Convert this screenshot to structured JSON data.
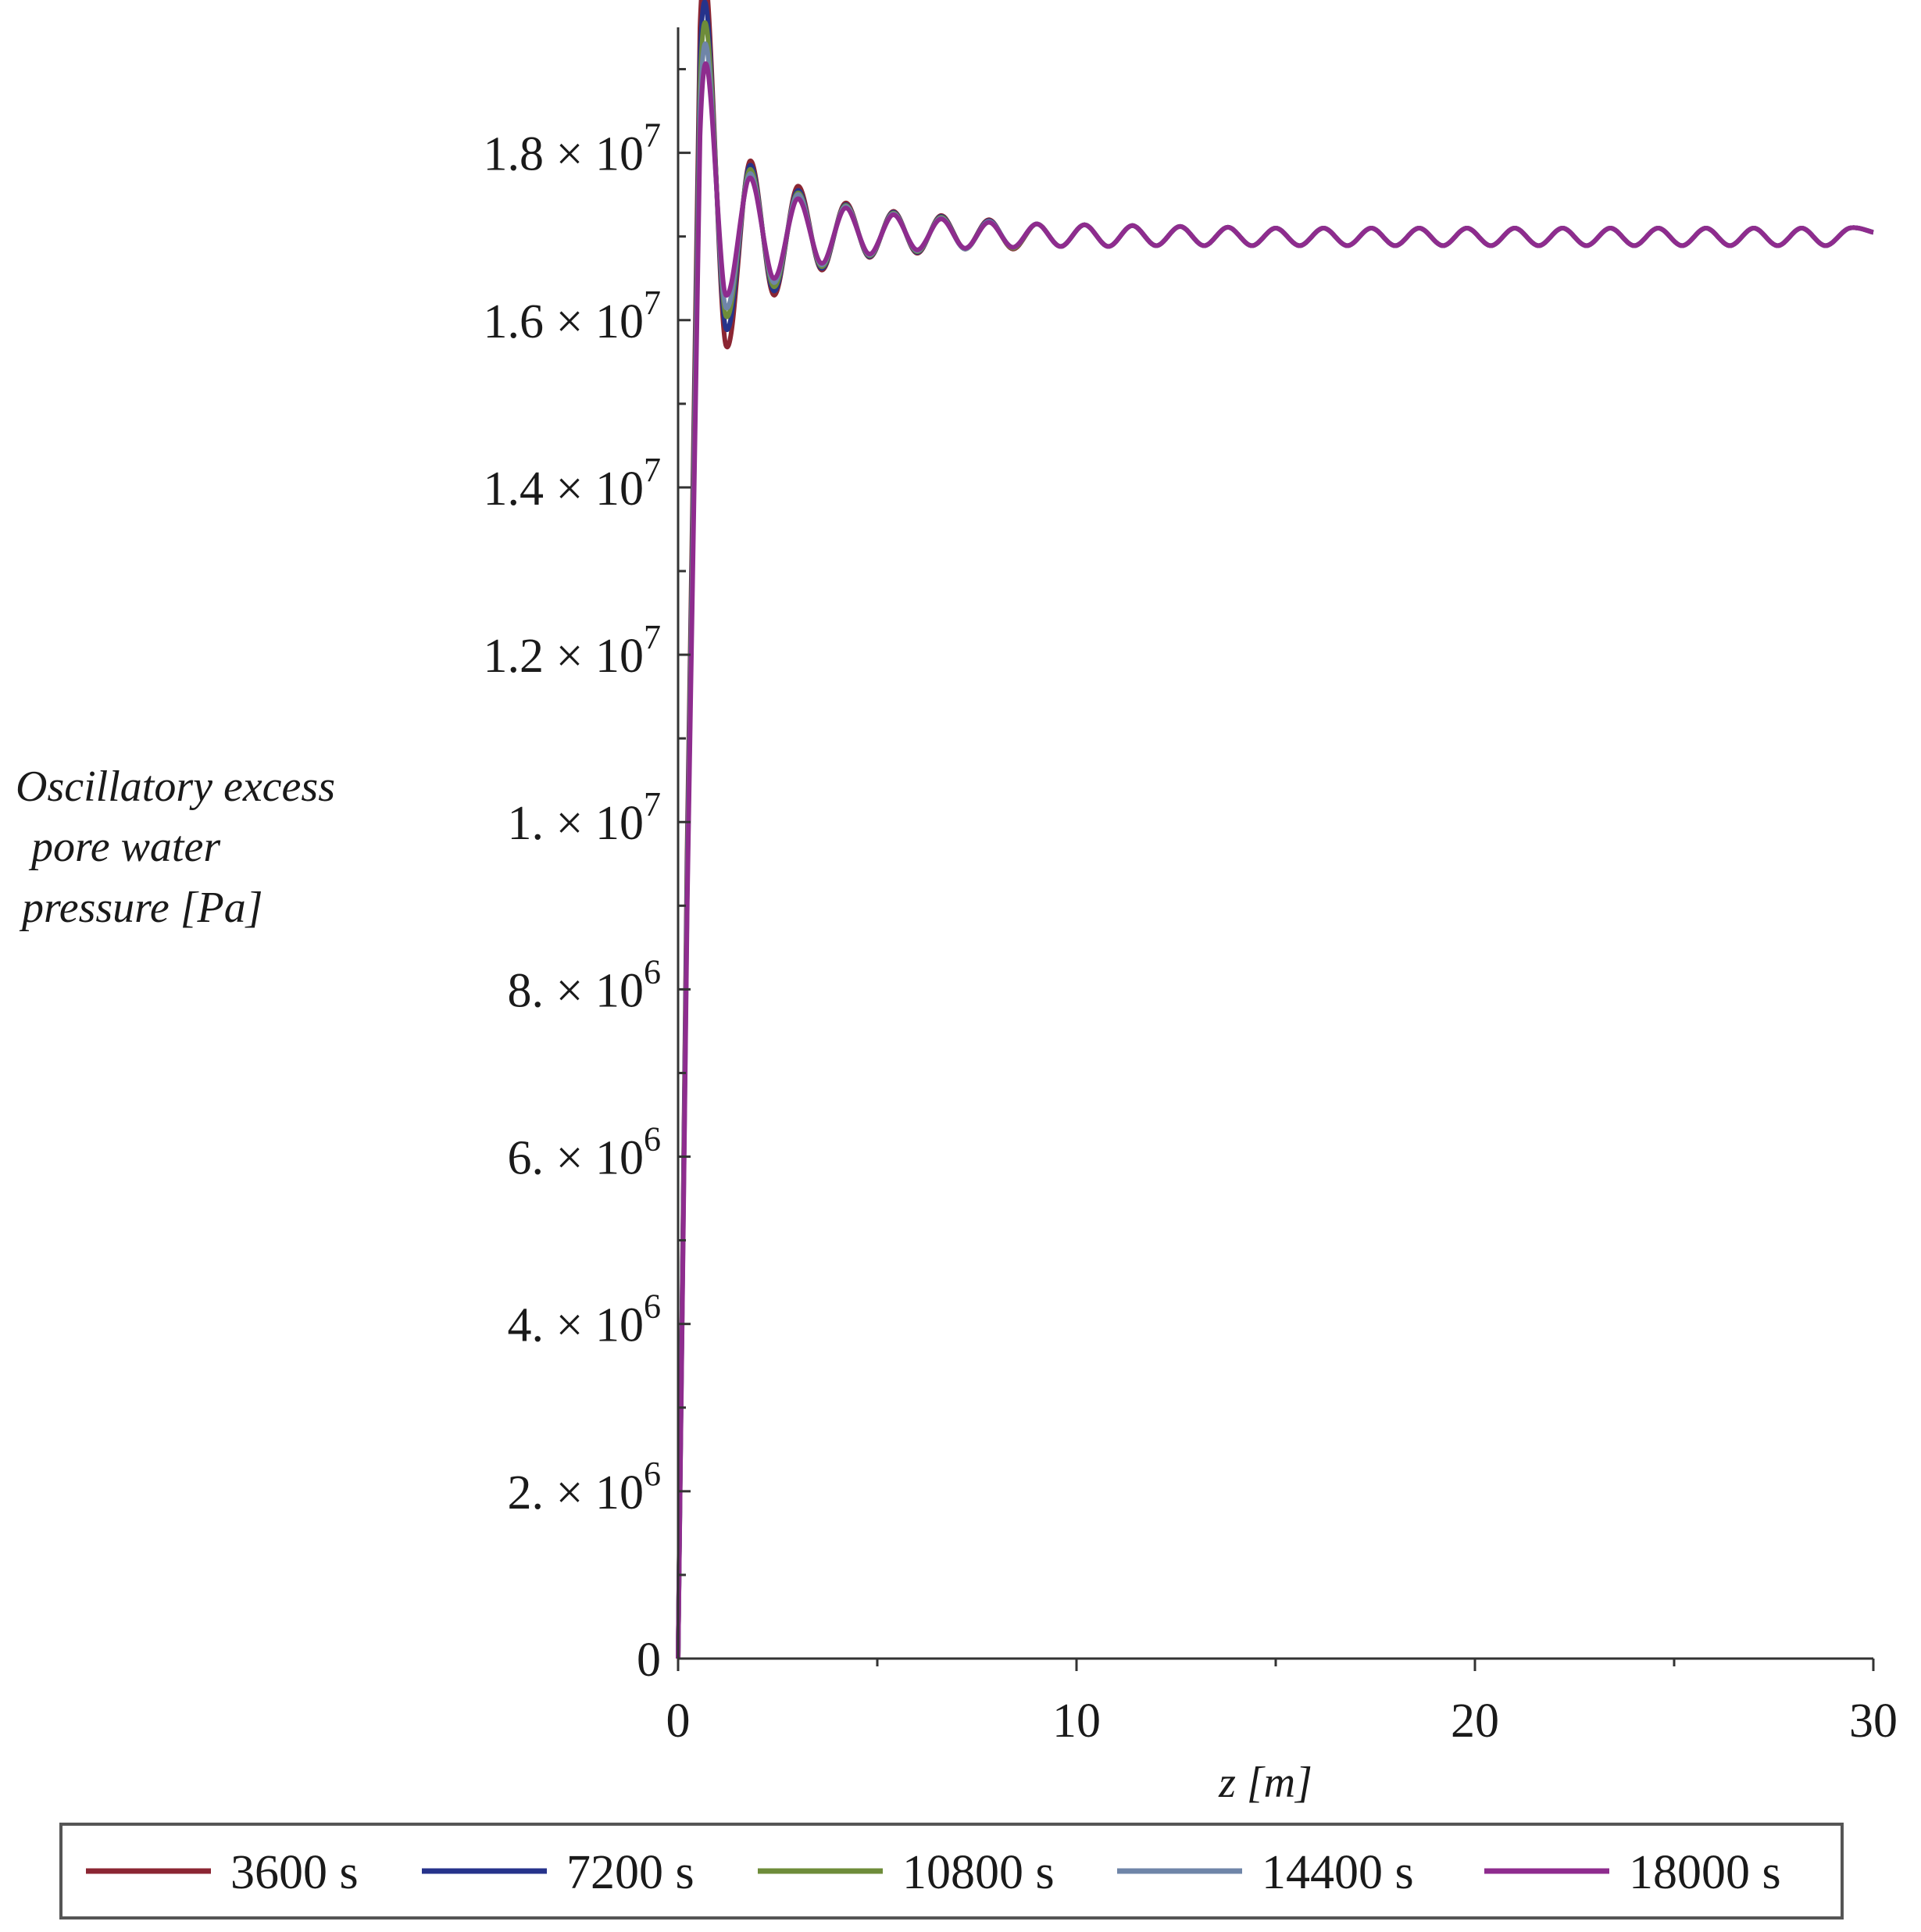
{
  "chart_data": {
    "type": "line",
    "title": "",
    "xlabel": "z [m]",
    "ylabel_lines": [
      "Oscillatory excess",
      "pore water",
      "pressure [Pa]"
    ],
    "xlim": [
      0,
      30
    ],
    "ylim": [
      0,
      19500000
    ],
    "x_ticks": [
      {
        "value": 0,
        "label": "0"
      },
      {
        "value": 10,
        "label": "10"
      },
      {
        "value": 20,
        "label": "20"
      },
      {
        "value": 30,
        "label": "30"
      }
    ],
    "y_ticks": [
      {
        "value": 0,
        "mantissa": "0",
        "exponent": ""
      },
      {
        "value": 2000000,
        "mantissa": "2. × 10",
        "exponent": "6"
      },
      {
        "value": 4000000,
        "mantissa": "4. × 10",
        "exponent": "6"
      },
      {
        "value": 6000000,
        "mantissa": "6. × 10",
        "exponent": "6"
      },
      {
        "value": 8000000,
        "mantissa": "8. × 10",
        "exponent": "6"
      },
      {
        "value": 10000000,
        "mantissa": "1. × 10",
        "exponent": "7"
      },
      {
        "value": 12000000,
        "mantissa": "1.2 × 10",
        "exponent": "7"
      },
      {
        "value": 14000000,
        "mantissa": "1.4 × 10",
        "exponent": "7"
      },
      {
        "value": 16000000,
        "mantissa": "1.6 × 10",
        "exponent": "7"
      },
      {
        "value": 18000000,
        "mantissa": "1.8 × 10",
        "exponent": "7"
      }
    ],
    "legend_position": "bottom",
    "series": [
      {
        "name": "3600 s",
        "color": "#8b2633",
        "points": [
          [
            0,
            0
          ],
          [
            0.55,
            19500000
          ],
          [
            1.2,
            15700000
          ],
          [
            1.8,
            17900000
          ],
          [
            2.4,
            16300000
          ],
          [
            3.0,
            17600000
          ],
          [
            3.6,
            16600000
          ],
          [
            4.2,
            17400000
          ],
          [
            4.8,
            16750000
          ],
          [
            5.4,
            17300000
          ],
          [
            6.0,
            16800000
          ],
          [
            6.6,
            17250000
          ],
          [
            7.2,
            16850000
          ],
          [
            7.8,
            17200000
          ],
          [
            8.4,
            16850000
          ],
          [
            9.0,
            17150000
          ],
          [
            9.6,
            16880000
          ],
          [
            10.2,
            17140000
          ],
          [
            10.8,
            16880000
          ],
          [
            11.4,
            17130000
          ],
          [
            12.0,
            16890000
          ],
          [
            12.6,
            17120000
          ],
          [
            13.2,
            16890000
          ],
          [
            13.8,
            17110000
          ],
          [
            14.4,
            16890000
          ],
          [
            15.0,
            17100000
          ],
          [
            15.6,
            16890000
          ],
          [
            16.2,
            17100000
          ],
          [
            16.8,
            16890000
          ],
          [
            17.4,
            17100000
          ],
          [
            18.0,
            16890000
          ],
          [
            18.6,
            17100000
          ],
          [
            19.2,
            16890000
          ],
          [
            19.8,
            17100000
          ],
          [
            20.4,
            16890000
          ],
          [
            21.0,
            17100000
          ],
          [
            21.6,
            16890000
          ],
          [
            22.2,
            17100000
          ],
          [
            22.8,
            16890000
          ],
          [
            23.4,
            17100000
          ],
          [
            24.0,
            16890000
          ],
          [
            24.6,
            17100000
          ],
          [
            25.2,
            16890000
          ],
          [
            25.8,
            17100000
          ],
          [
            26.4,
            16890000
          ],
          [
            27.0,
            17100000
          ],
          [
            27.6,
            16890000
          ],
          [
            28.2,
            17100000
          ],
          [
            28.8,
            16890000
          ],
          [
            29.4,
            17100000
          ],
          [
            30.0,
            17050000
          ]
        ]
      },
      {
        "name": "7200 s",
        "color": "#26338b",
        "points": [
          [
            0,
            0
          ],
          [
            0.55,
            19100000
          ],
          [
            1.2,
            15900000
          ],
          [
            1.8,
            17850000
          ],
          [
            2.4,
            16350000
          ],
          [
            3.0,
            17550000
          ],
          [
            3.6,
            16620000
          ],
          [
            4.2,
            17380000
          ],
          [
            4.8,
            16760000
          ],
          [
            5.4,
            17290000
          ],
          [
            6.0,
            16810000
          ],
          [
            6.6,
            17240000
          ],
          [
            7.2,
            16850000
          ],
          [
            7.8,
            17190000
          ],
          [
            8.4,
            16860000
          ],
          [
            9.0,
            17150000
          ],
          [
            9.6,
            16880000
          ],
          [
            10.2,
            17140000
          ],
          [
            10.8,
            16880000
          ],
          [
            11.4,
            17130000
          ],
          [
            12.0,
            16890000
          ],
          [
            12.6,
            17120000
          ],
          [
            13.2,
            16890000
          ],
          [
            13.8,
            17110000
          ],
          [
            14.4,
            16890000
          ],
          [
            15.0,
            17100000
          ],
          [
            15.6,
            16890000
          ],
          [
            16.2,
            17100000
          ],
          [
            16.8,
            16890000
          ],
          [
            17.4,
            17100000
          ],
          [
            18.0,
            16890000
          ],
          [
            18.6,
            17100000
          ],
          [
            19.2,
            16890000
          ],
          [
            19.8,
            17100000
          ],
          [
            20.4,
            16890000
          ],
          [
            21.0,
            17100000
          ],
          [
            21.6,
            16890000
          ],
          [
            22.2,
            17100000
          ],
          [
            22.8,
            16890000
          ],
          [
            23.4,
            17100000
          ],
          [
            24.0,
            16890000
          ],
          [
            24.6,
            17100000
          ],
          [
            25.2,
            16890000
          ],
          [
            25.8,
            17100000
          ],
          [
            26.4,
            16890000
          ],
          [
            27.0,
            17100000
          ],
          [
            27.6,
            16890000
          ],
          [
            28.2,
            17100000
          ],
          [
            28.8,
            16890000
          ],
          [
            29.4,
            17100000
          ],
          [
            30.0,
            17050000
          ]
        ]
      },
      {
        "name": "10800 s",
        "color": "#6e8c3a",
        "points": [
          [
            0,
            0
          ],
          [
            0.55,
            18800000
          ],
          [
            1.2,
            16050000
          ],
          [
            1.8,
            17800000
          ],
          [
            2.4,
            16400000
          ],
          [
            3.0,
            17520000
          ],
          [
            3.6,
            16640000
          ],
          [
            4.2,
            17370000
          ],
          [
            4.8,
            16770000
          ],
          [
            5.4,
            17280000
          ],
          [
            6.0,
            16820000
          ],
          [
            6.6,
            17230000
          ],
          [
            7.2,
            16850000
          ],
          [
            7.8,
            17180000
          ],
          [
            8.4,
            16860000
          ],
          [
            9.0,
            17150000
          ],
          [
            9.6,
            16880000
          ],
          [
            10.2,
            17140000
          ],
          [
            10.8,
            16880000
          ],
          [
            11.4,
            17130000
          ],
          [
            12.0,
            16890000
          ],
          [
            12.6,
            17120000
          ],
          [
            13.2,
            16890000
          ],
          [
            13.8,
            17110000
          ],
          [
            14.4,
            16890000
          ],
          [
            15.0,
            17100000
          ],
          [
            15.6,
            16890000
          ],
          [
            16.2,
            17100000
          ],
          [
            16.8,
            16890000
          ],
          [
            17.4,
            17100000
          ],
          [
            18.0,
            16890000
          ],
          [
            18.6,
            17100000
          ],
          [
            19.2,
            16890000
          ],
          [
            19.8,
            17100000
          ],
          [
            20.4,
            16890000
          ],
          [
            21.0,
            17100000
          ],
          [
            21.6,
            16890000
          ],
          [
            22.2,
            17100000
          ],
          [
            22.8,
            16890000
          ],
          [
            23.4,
            17100000
          ],
          [
            24.0,
            16890000
          ],
          [
            24.6,
            17100000
          ],
          [
            25.2,
            16890000
          ],
          [
            25.8,
            17100000
          ],
          [
            26.4,
            16890000
          ],
          [
            27.0,
            17100000
          ],
          [
            27.6,
            16890000
          ],
          [
            28.2,
            17100000
          ],
          [
            28.8,
            16890000
          ],
          [
            29.4,
            17100000
          ],
          [
            30.0,
            17050000
          ]
        ]
      },
      {
        "name": "14400 s",
        "color": "#6f85a8",
        "points": [
          [
            0,
            0
          ],
          [
            0.55,
            18500000
          ],
          [
            1.2,
            16150000
          ],
          [
            1.8,
            17750000
          ],
          [
            2.4,
            16450000
          ],
          [
            3.0,
            17500000
          ],
          [
            3.6,
            16660000
          ],
          [
            4.2,
            17360000
          ],
          [
            4.8,
            16780000
          ],
          [
            5.4,
            17270000
          ],
          [
            6.0,
            16830000
          ],
          [
            6.6,
            17220000
          ],
          [
            7.2,
            16850000
          ],
          [
            7.8,
            17180000
          ],
          [
            8.4,
            16870000
          ],
          [
            9.0,
            17150000
          ],
          [
            9.6,
            16880000
          ],
          [
            10.2,
            17140000
          ],
          [
            10.8,
            16880000
          ],
          [
            11.4,
            17130000
          ],
          [
            12.0,
            16890000
          ],
          [
            12.6,
            17120000
          ],
          [
            13.2,
            16890000
          ],
          [
            13.8,
            17110000
          ],
          [
            14.4,
            16890000
          ],
          [
            15.0,
            17100000
          ],
          [
            15.6,
            16890000
          ],
          [
            16.2,
            17100000
          ],
          [
            16.8,
            16890000
          ],
          [
            17.4,
            17100000
          ],
          [
            18.0,
            16890000
          ],
          [
            18.6,
            17100000
          ],
          [
            19.2,
            16890000
          ],
          [
            19.8,
            17100000
          ],
          [
            20.4,
            16890000
          ],
          [
            21.0,
            17100000
          ],
          [
            21.6,
            16890000
          ],
          [
            22.2,
            17100000
          ],
          [
            22.8,
            16890000
          ],
          [
            23.4,
            17100000
          ],
          [
            24.0,
            16890000
          ],
          [
            24.6,
            17100000
          ],
          [
            25.2,
            16890000
          ],
          [
            25.8,
            17100000
          ],
          [
            26.4,
            16890000
          ],
          [
            27.0,
            17100000
          ],
          [
            27.6,
            16890000
          ],
          [
            28.2,
            17100000
          ],
          [
            28.8,
            16890000
          ],
          [
            29.4,
            17100000
          ],
          [
            30.0,
            17050000
          ]
        ]
      },
      {
        "name": "18000 s",
        "color": "#8e2c8e",
        "points": [
          [
            0,
            0
          ],
          [
            0.55,
            18200000
          ],
          [
            1.2,
            16300000
          ],
          [
            1.8,
            17700000
          ],
          [
            2.4,
            16500000
          ],
          [
            3.0,
            17450000
          ],
          [
            3.6,
            16680000
          ],
          [
            4.2,
            17340000
          ],
          [
            4.8,
            16790000
          ],
          [
            5.4,
            17260000
          ],
          [
            6.0,
            16840000
          ],
          [
            6.6,
            17210000
          ],
          [
            7.2,
            16860000
          ],
          [
            7.8,
            17170000
          ],
          [
            8.4,
            16870000
          ],
          [
            9.0,
            17150000
          ],
          [
            9.6,
            16880000
          ],
          [
            10.2,
            17140000
          ],
          [
            10.8,
            16880000
          ],
          [
            11.4,
            17130000
          ],
          [
            12.0,
            16890000
          ],
          [
            12.6,
            17120000
          ],
          [
            13.2,
            16890000
          ],
          [
            13.8,
            17110000
          ],
          [
            14.4,
            16890000
          ],
          [
            15.0,
            17100000
          ],
          [
            15.6,
            16890000
          ],
          [
            16.2,
            17100000
          ],
          [
            16.8,
            16890000
          ],
          [
            17.4,
            17100000
          ],
          [
            18.0,
            16890000
          ],
          [
            18.6,
            17100000
          ],
          [
            19.2,
            16890000
          ],
          [
            19.8,
            17100000
          ],
          [
            20.4,
            16890000
          ],
          [
            21.0,
            17100000
          ],
          [
            21.6,
            16890000
          ],
          [
            22.2,
            17100000
          ],
          [
            22.8,
            16890000
          ],
          [
            23.4,
            17100000
          ],
          [
            24.0,
            16890000
          ],
          [
            24.6,
            17100000
          ],
          [
            25.2,
            16890000
          ],
          [
            25.8,
            17100000
          ],
          [
            26.4,
            16890000
          ],
          [
            27.0,
            17100000
          ],
          [
            27.6,
            16890000
          ],
          [
            28.2,
            17100000
          ],
          [
            28.8,
            16890000
          ],
          [
            29.4,
            17100000
          ],
          [
            30.0,
            17050000
          ]
        ]
      }
    ]
  }
}
